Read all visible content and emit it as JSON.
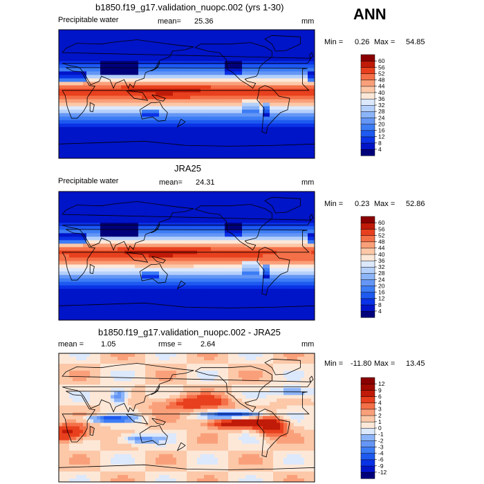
{
  "season": "ANN",
  "panels": [
    {
      "title": "b1850.f19_g17.validation_nuopc.002 (yrs 1-30)",
      "variable": "Precipitable water",
      "mean_label": "mean=",
      "mean_value": "25.36",
      "units": "mm",
      "min_label": "Min =",
      "min_value": "0.26",
      "max_label": "Max =",
      "max_value": "54.85"
    },
    {
      "title": "JRA25",
      "variable": "Precipitable water",
      "mean_label": "mean=",
      "mean_value": "24.31",
      "units": "mm",
      "min_label": "Min =",
      "min_value": "0.23",
      "max_label": "Max =",
      "max_value": "52.86"
    },
    {
      "title": "b1850.f19_g17.validation_nuopc.002 - JRA25",
      "mean_label": "mean =",
      "mean_value": "1.05",
      "rmse_label": "rmse =",
      "rmse_value": "2.64",
      "units": "mm",
      "min_label": "Min =",
      "min_value": "-11.80",
      "max_label": "Max =",
      "max_value": "13.45"
    }
  ],
  "chart_data": [
    {
      "type": "heatmap",
      "title": "b1850.f19_g17.validation_nuopc.002 (yrs 1-30)",
      "variable": "Precipitable water",
      "units": "mm",
      "mean": 25.36,
      "min": 0.26,
      "max": 54.85,
      "colorbar_levels": [
        "4",
        "8",
        "12",
        "16",
        "20",
        "24",
        "28",
        "32",
        "36",
        "40",
        "44",
        "48",
        "52",
        "56",
        "60"
      ],
      "colorbar_colors": [
        "#00007a",
        "#0014c8",
        "#0a32e6",
        "#1e5af0",
        "#3c7cf5",
        "#6496f5",
        "#8cb4f8",
        "#b4d0fa",
        "#dce8fc",
        "#fde8d8",
        "#fcc8a8",
        "#f9a07a",
        "#f47048",
        "#e8401e",
        "#c01a08",
        "#8a0000"
      ],
      "field_fn": "pw_model"
    },
    {
      "type": "heatmap",
      "title": "JRA25",
      "variable": "Precipitable water",
      "units": "mm",
      "mean": 24.31,
      "min": 0.23,
      "max": 52.86,
      "colorbar_levels": [
        "4",
        "8",
        "12",
        "16",
        "20",
        "24",
        "28",
        "32",
        "36",
        "40",
        "44",
        "48",
        "52",
        "56",
        "60"
      ],
      "colorbar_colors": [
        "#00007a",
        "#0014c8",
        "#0a32e6",
        "#1e5af0",
        "#3c7cf5",
        "#6496f5",
        "#8cb4f8",
        "#b4d0fa",
        "#dce8fc",
        "#fde8d8",
        "#fcc8a8",
        "#f9a07a",
        "#f47048",
        "#e8401e",
        "#c01a08",
        "#8a0000"
      ],
      "field_fn": "pw_obs"
    },
    {
      "type": "heatmap",
      "title": "b1850.f19_g17.validation_nuopc.002 - JRA25",
      "units": "mm",
      "mean": 1.05,
      "rmse": 2.64,
      "min": -11.8,
      "max": 13.45,
      "colorbar_levels": [
        "-12",
        "-9",
        "-6",
        "-4",
        "-3",
        "-2",
        "-1",
        "0",
        "1",
        "2",
        "3",
        "4",
        "6",
        "9",
        "12"
      ],
      "colorbar_colors": [
        "#00007a",
        "#0014c8",
        "#0a32e6",
        "#1e5af0",
        "#3c7cf5",
        "#6496f5",
        "#8cb4f8",
        "#dce8fc",
        "#fde8d8",
        "#fcc8a8",
        "#f9a07a",
        "#f47048",
        "#e8401e",
        "#c01a08",
        "#a00a00",
        "#8a0000"
      ],
      "field_fn": "diff"
    }
  ]
}
